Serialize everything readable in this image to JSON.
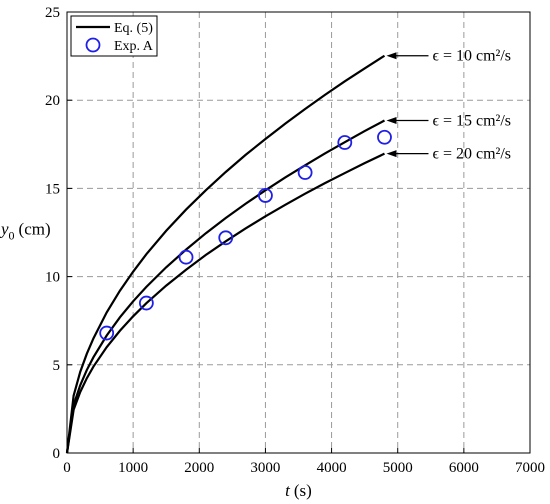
{
  "chart_data": {
    "type": "line",
    "xlabel_var": "t",
    "xlabel_unit": "(s)",
    "ylabel_var": "y",
    "ylabel_sub": "0",
    "ylabel_unit": "(cm)",
    "xlim": [
      0,
      7000
    ],
    "ylim": [
      0,
      25
    ],
    "xticks": [
      0,
      1000,
      2000,
      3000,
      4000,
      5000,
      6000,
      7000
    ],
    "yticks": [
      0,
      5,
      10,
      15,
      20,
      25
    ],
    "grid": true,
    "legend_position": "top-left",
    "legend": [
      {
        "label": "Eq. (5)",
        "kind": "line",
        "color": "#000000"
      },
      {
        "label": "Exp. A",
        "kind": "marker",
        "color": "#1f1fe6"
      }
    ],
    "series": [
      {
        "kind": "line",
        "epsilon": 10,
        "annotation": "ϵ = 10 cm²/s",
        "x": [
          0,
          100,
          200,
          300,
          400,
          600,
          800,
          1000,
          1200,
          1500,
          1800,
          2100,
          2400,
          2700,
          3000,
          3300,
          3600,
          3900,
          4200,
          4500,
          4800
        ],
        "y": [
          0,
          3.25,
          4.6,
          5.63,
          6.5,
          7.97,
          9.2,
          10.28,
          11.27,
          12.6,
          13.8,
          14.9,
          15.93,
          16.9,
          17.8,
          18.67,
          19.5,
          20.3,
          21.07,
          21.8,
          22.52
        ]
      },
      {
        "kind": "line",
        "epsilon": 15,
        "annotation": "ϵ = 15 cm²/s",
        "x": [
          0,
          100,
          200,
          300,
          400,
          600,
          800,
          1000,
          1200,
          1500,
          1800,
          2100,
          2400,
          2700,
          3000,
          3300,
          3600,
          3900,
          4200,
          4500,
          4800
        ],
        "y": [
          0,
          2.72,
          3.84,
          4.71,
          5.43,
          6.66,
          7.69,
          8.6,
          9.42,
          10.53,
          11.53,
          12.46,
          13.32,
          14.13,
          14.89,
          15.62,
          16.31,
          16.98,
          17.62,
          18.25,
          18.85
        ]
      },
      {
        "kind": "line",
        "epsilon": 20,
        "annotation": "ϵ = 20 cm²/s",
        "x": [
          0,
          100,
          200,
          300,
          400,
          600,
          800,
          1000,
          1200,
          1500,
          1800,
          2100,
          2400,
          2700,
          3000,
          3300,
          3600,
          3900,
          4200,
          4500,
          4800
        ],
        "y": [
          0,
          2.45,
          3.46,
          4.24,
          4.9,
          6.0,
          6.93,
          7.75,
          8.49,
          9.49,
          10.39,
          11.23,
          12.0,
          12.73,
          13.42,
          14.07,
          14.7,
          15.3,
          15.87,
          16.43,
          16.97
        ]
      },
      {
        "kind": "scatter",
        "name": "Exp. A",
        "x": [
          600,
          1200,
          1800,
          2400,
          3000,
          3600,
          4200,
          4800
        ],
        "y": [
          6.8,
          8.5,
          11.1,
          12.2,
          14.6,
          15.9,
          17.6,
          17.9
        ]
      }
    ]
  }
}
